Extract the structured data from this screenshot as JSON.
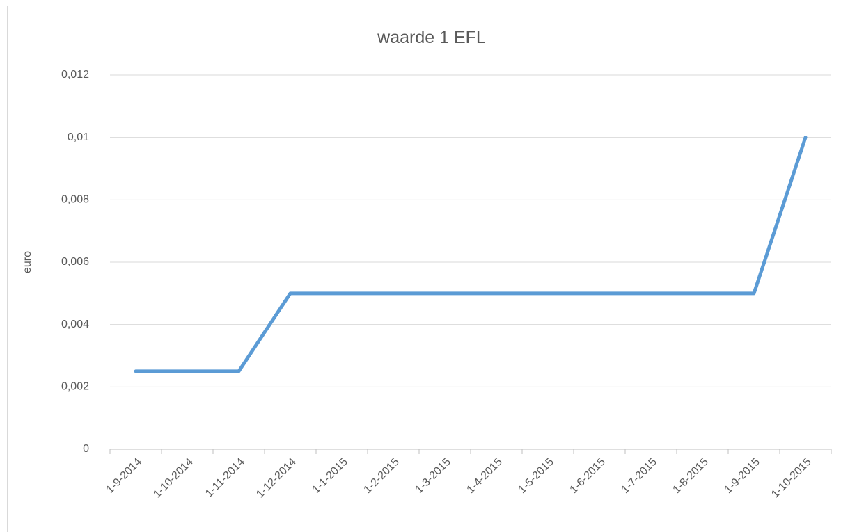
{
  "chart_data": {
    "type": "line",
    "title": "waarde 1 EFL",
    "y_label": "euro",
    "categories": [
      "1-9-2014",
      "1-10-2014",
      "1-11-2014",
      "1-12-2014",
      "1-1-2015",
      "1-2-2015",
      "1-3-2015",
      "1-4-2015",
      "1-5-2015",
      "1-6-2015",
      "1-7-2015",
      "1-8-2015",
      "1-9-2015",
      "1-10-2015"
    ],
    "values": [
      0.0025,
      0.0025,
      0.0025,
      0.005,
      0.005,
      0.005,
      0.005,
      0.005,
      0.005,
      0.005,
      0.005,
      0.005,
      0.005,
      0.01
    ],
    "color": "#5b9bd5",
    "ylim": [
      0,
      0.012
    ],
    "yticks": [
      0,
      {
        "value": 0.002,
        "label": "0,002"
      },
      {
        "value": 0.004,
        "label": "0,004"
      },
      {
        "value": 0.006,
        "label": "0,006"
      },
      {
        "value": 0.008,
        "label": "0,008"
      },
      {
        "value": 0.01,
        "label": "0,01"
      },
      {
        "value": 0.012,
        "label": "0,012"
      }
    ],
    "grid": true
  }
}
